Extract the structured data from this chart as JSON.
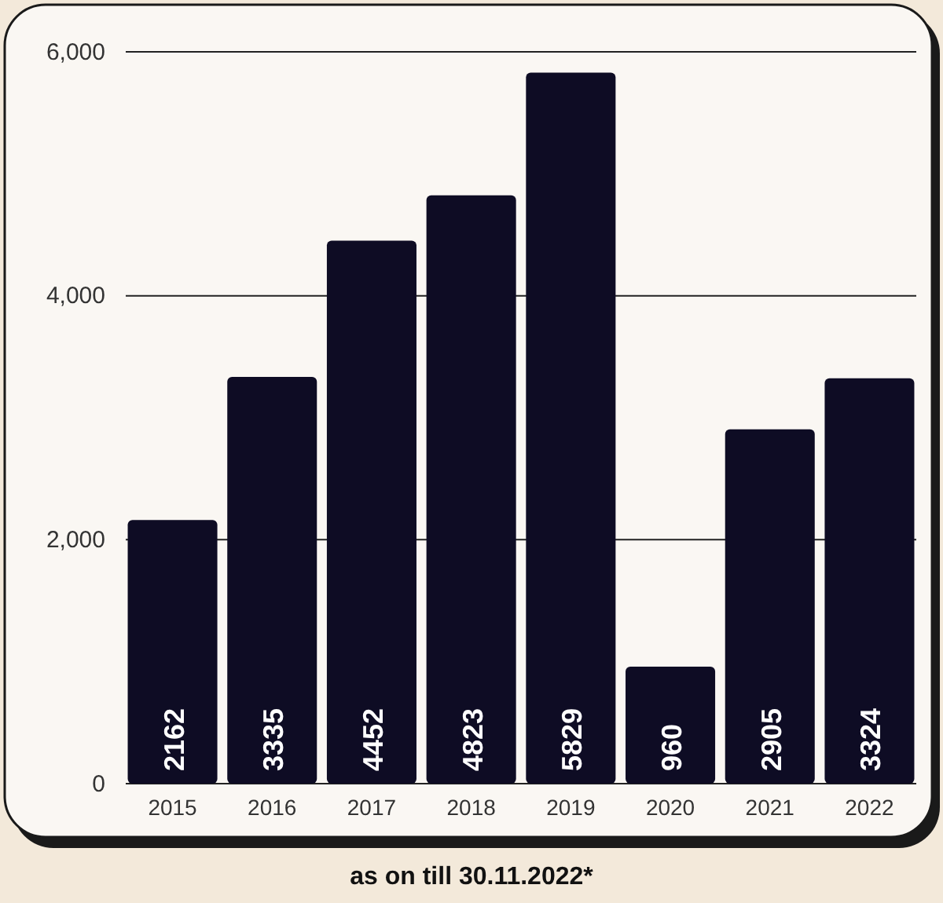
{
  "chart_data": {
    "type": "bar",
    "categories": [
      "2015",
      "2016",
      "2017",
      "2018",
      "2019",
      "2020",
      "2021",
      "2022"
    ],
    "values": [
      2162,
      3335,
      4452,
      4823,
      5829,
      960,
      2905,
      3324
    ],
    "color": "#0e0c24",
    "ylim": [
      0,
      6000
    ],
    "yticks": [
      0,
      {
        "value": 2000,
        "label": "2,000"
      },
      {
        "value": 4000,
        "label": "4,000"
      },
      {
        "value": 6000,
        "label": "6,000"
      }
    ],
    "grid": "y",
    "data_labels": true,
    "annotations": [
      "as on till 30.11.2022*"
    ]
  }
}
